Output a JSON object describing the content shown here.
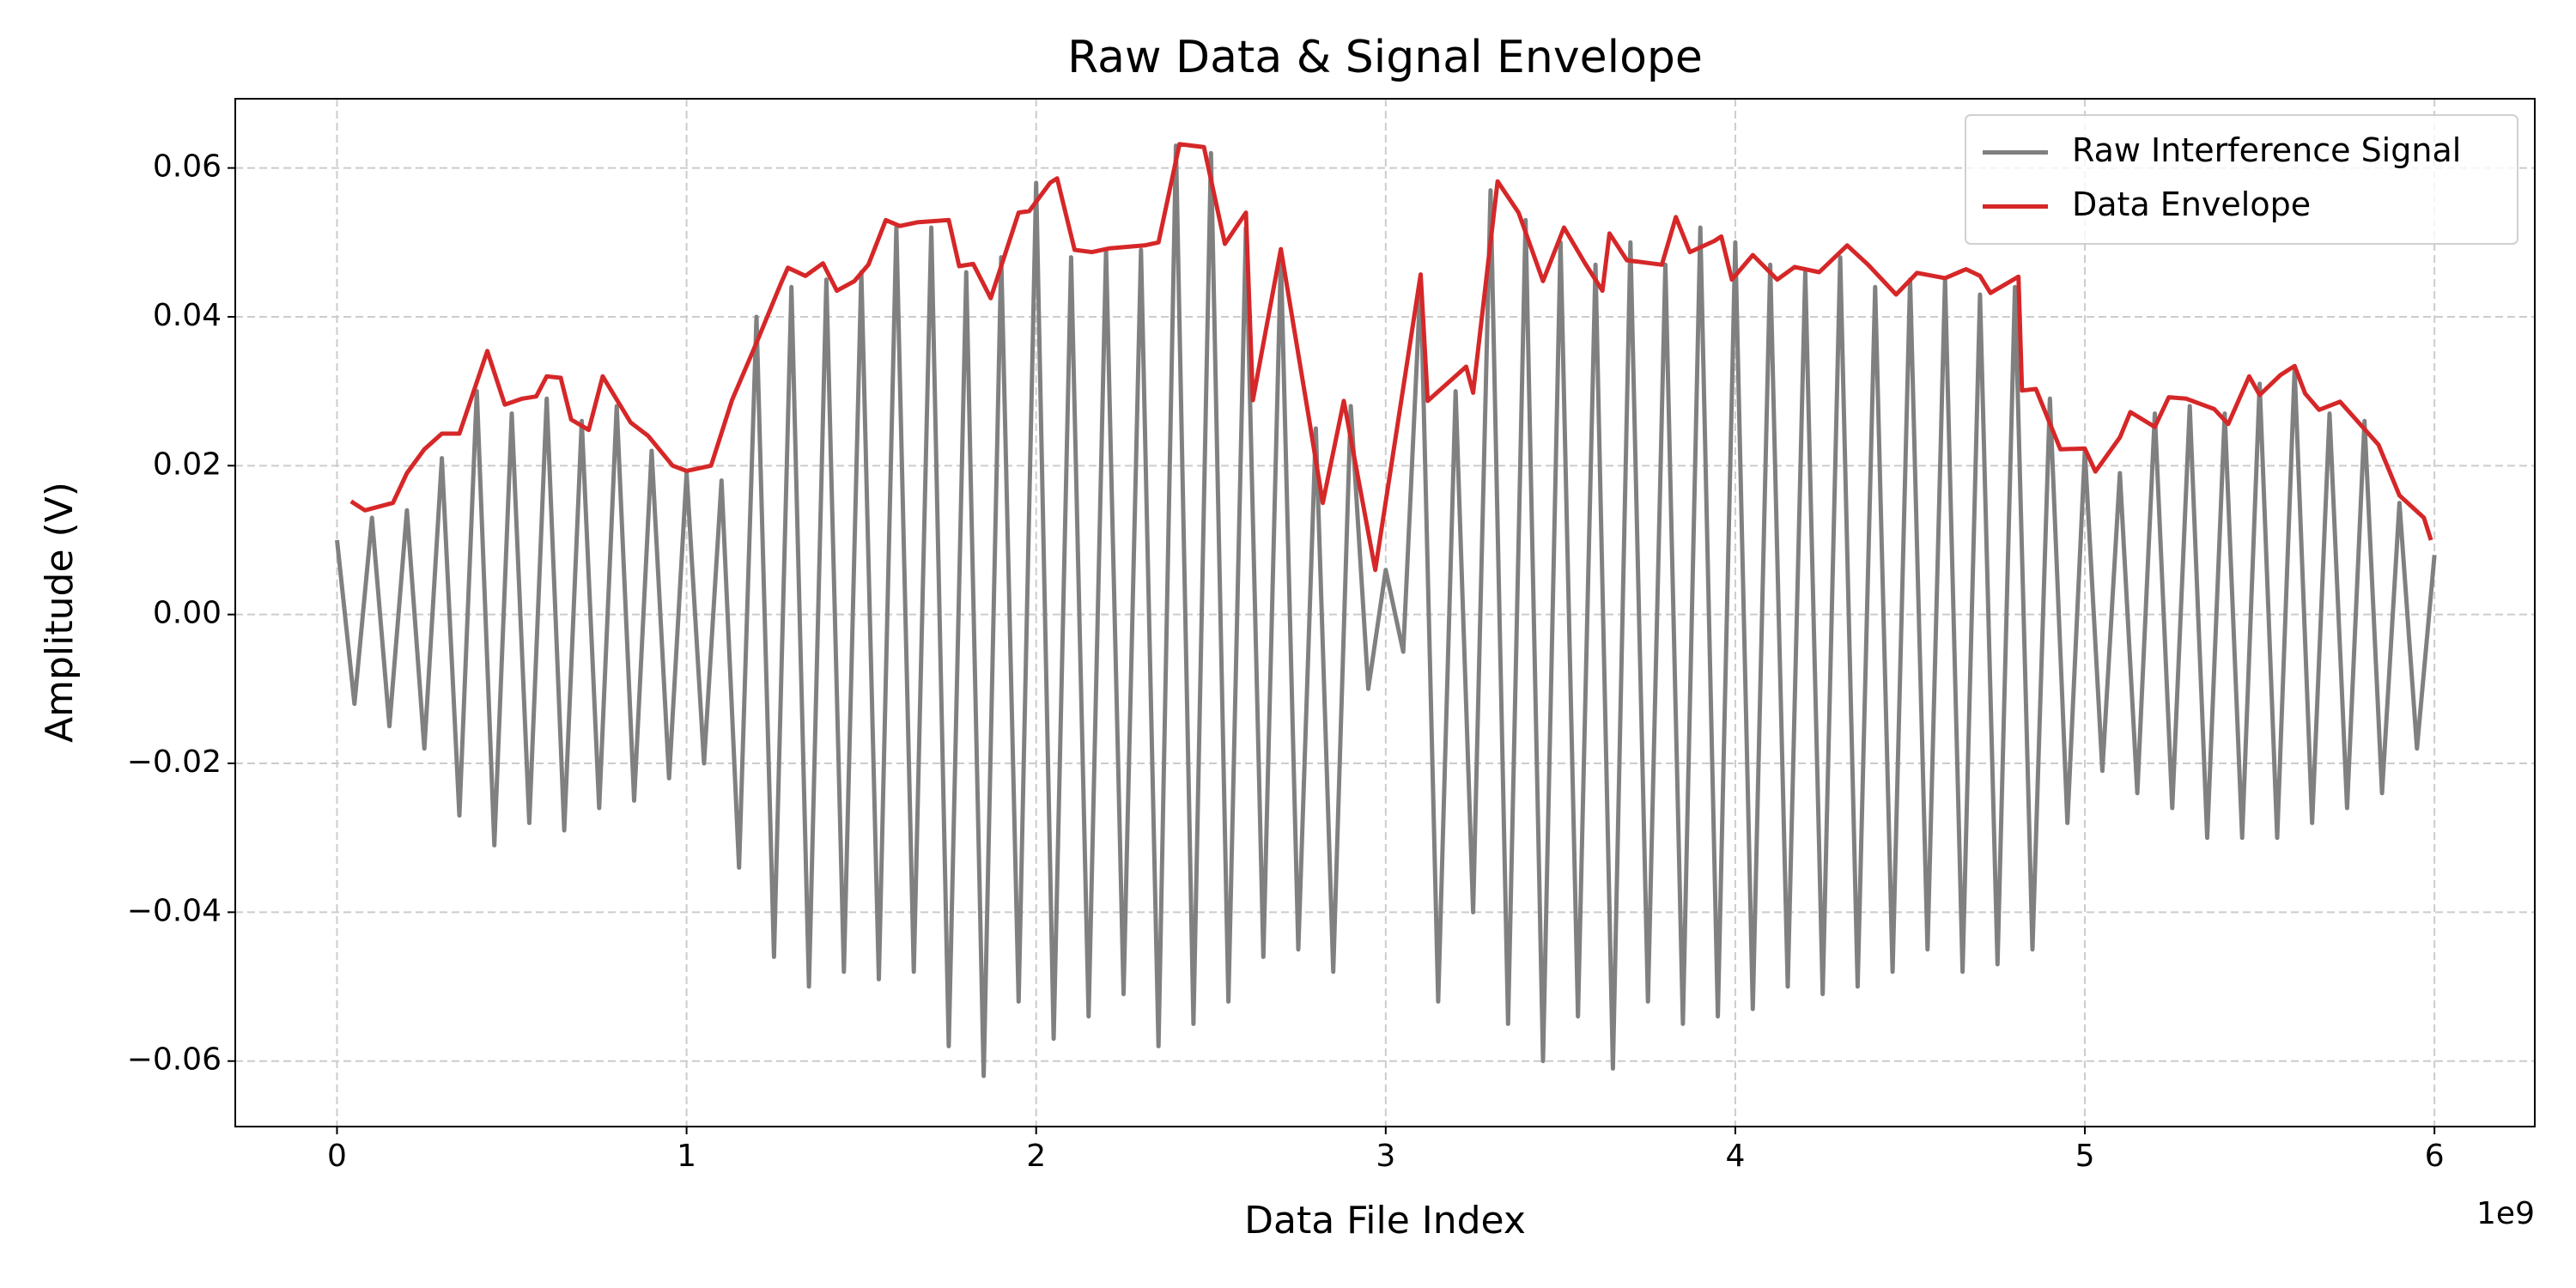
{
  "chart_data": {
    "type": "line",
    "title": "Raw Data & Signal Envelope",
    "xlabel": "Data File Index",
    "ylabel": "Amplitude (V)",
    "x_offset_label": "1e9",
    "xlim": [
      -291000000,
      6287000000
    ],
    "ylim": [
      -0.0688,
      0.0693
    ],
    "xticks": [
      {
        "value": 0,
        "label": "0"
      },
      {
        "value": 1000000000,
        "label": "1"
      },
      {
        "value": 2000000000,
        "label": "2"
      },
      {
        "value": 3000000000,
        "label": "3"
      },
      {
        "value": 4000000000,
        "label": "4"
      },
      {
        "value": 5000000000,
        "label": "5"
      },
      {
        "value": 6000000000,
        "label": "6"
      }
    ],
    "yticks": [
      {
        "value": -0.06,
        "label": "−0.06"
      },
      {
        "value": -0.04,
        "label": "−0.04"
      },
      {
        "value": -0.02,
        "label": "−0.02"
      },
      {
        "value": 0,
        "label": "0.00"
      },
      0.02,
      0.04,
      0.06
    ],
    "grid": true,
    "legend": "upper right",
    "series": [
      {
        "name": "Raw Interference Signal",
        "color": "#808080",
        "x": [
          0,
          50000000,
          100000000,
          150000000,
          200000000,
          250000000,
          300000000,
          350000000,
          400000000,
          450000000,
          500000000,
          550000000,
          600000000,
          650000000,
          700000000,
          750000000,
          800000000,
          850000000,
          900000000,
          950000000,
          1000000000,
          1050000000,
          1100000000,
          1150000000,
          1200000000,
          1250000000,
          1300000000,
          1350000000,
          1400000000,
          1450000000,
          1500000000,
          1550000000,
          1600000000,
          1650000000,
          1700000000,
          1750000000,
          1800000000,
          1850000000,
          1900000000,
          1950000000,
          2000000000,
          2050000000,
          2100000000,
          2150000000,
          2200000000,
          2250000000,
          2300000000,
          2350000000,
          2400000000,
          2450000000,
          2500000000,
          2550000000,
          2600000000,
          2650000000,
          2700000000,
          2750000000,
          2800000000,
          2850000000,
          2900000000,
          2950000000,
          3000000000,
          3050000000,
          3100000000,
          3150000000,
          3200000000,
          3250000000,
          3300000000,
          3350000000,
          3400000000,
          3450000000,
          3500000000,
          3550000000,
          3600000000,
          3650000000,
          3700000000,
          3750000000,
          3800000000,
          3850000000,
          3900000000,
          3950000000,
          4000000000,
          4050000000,
          4100000000,
          4150000000,
          4200000000,
          4250000000,
          4300000000,
          4350000000,
          4400000000,
          4450000000,
          4500000000,
          4550000000,
          4600000000,
          4650000000,
          4700000000,
          4750000000,
          4800000000,
          4850000000,
          4900000000,
          4950000000,
          5000000000,
          5050000000,
          5100000000,
          5150000000,
          5200000000,
          5250000000,
          5300000000,
          5350000000,
          5400000000,
          5450000000,
          5500000000,
          5550000000,
          5600000000,
          5650000000,
          5700000000,
          5750000000,
          5800000000,
          5850000000,
          5900000000,
          5950000000,
          6000000000
        ],
        "values": [
          0.01,
          -0.012,
          0.013,
          -0.015,
          0.014,
          -0.018,
          0.021,
          -0.027,
          0.03,
          -0.031,
          0.027,
          -0.028,
          0.029,
          -0.029,
          0.026,
          -0.026,
          0.028,
          -0.025,
          0.022,
          -0.022,
          0.019,
          -0.02,
          0.018,
          -0.034,
          0.04,
          -0.046,
          0.044,
          -0.05,
          0.045,
          -0.048,
          0.046,
          -0.049,
          0.052,
          -0.048,
          0.052,
          -0.058,
          0.046,
          -0.062,
          0.048,
          -0.052,
          0.058,
          -0.057,
          0.048,
          -0.054,
          0.049,
          -0.051,
          0.049,
          -0.058,
          0.063,
          -0.055,
          0.062,
          -0.052,
          0.052,
          -0.046,
          0.048,
          -0.045,
          0.025,
          -0.048,
          0.028,
          -0.01,
          0.006,
          -0.005,
          0.045,
          -0.052,
          0.03,
          -0.04,
          0.057,
          -0.055,
          0.053,
          -0.06,
          0.05,
          -0.054,
          0.047,
          -0.061,
          0.05,
          -0.052,
          0.047,
          -0.055,
          0.052,
          -0.054,
          0.05,
          -0.053,
          0.047,
          -0.05,
          0.046,
          -0.051,
          0.048,
          -0.05,
          0.044,
          -0.048,
          0.045,
          -0.045,
          0.045,
          -0.048,
          0.043,
          -0.047,
          0.044,
          -0.045,
          0.029,
          -0.028,
          0.022,
          -0.021,
          0.019,
          -0.024,
          0.027,
          -0.026,
          0.028,
          -0.03,
          0.027,
          -0.03,
          0.031,
          -0.03,
          0.033,
          -0.028,
          0.027,
          -0.026,
          0.026,
          -0.024,
          0.015,
          -0.018,
          0.008
        ]
      },
      {
        "name": "Data Envelope",
        "color": "#d62728",
        "x": [
          40000000,
          80000000,
          160000000,
          200000000,
          250000000,
          300000000,
          350000000,
          430000000,
          480000000,
          530000000,
          570000000,
          600000000,
          640000000,
          670000000,
          720000000,
          760000000,
          840000000,
          890000000,
          960000000,
          1000000000,
          1070000000,
          1130000000,
          1200000000,
          1270000000,
          1290000000,
          1340000000,
          1390000000,
          1430000000,
          1480000000,
          1520000000,
          1570000000,
          1610000000,
          1660000000,
          1750000000,
          1780000000,
          1820000000,
          1870000000,
          1950000000,
          1980000000,
          2040000000,
          2060000000,
          2110000000,
          2160000000,
          2210000000,
          2310000000,
          2350000000,
          2410000000,
          2480000000,
          2540000000,
          2600000000,
          2620000000,
          2700000000,
          2780000000,
          2820000000,
          2880000000,
          2970000000,
          3100000000,
          3120000000,
          3230000000,
          3250000000,
          3320000000,
          3380000000,
          3450000000,
          3510000000,
          3570000000,
          3620000000,
          3640000000,
          3690000000,
          3790000000,
          3830000000,
          3870000000,
          3940000000,
          3960000000,
          3990000000,
          4050000000,
          4120000000,
          4170000000,
          4240000000,
          4320000000,
          4380000000,
          4460000000,
          4520000000,
          4600000000,
          4660000000,
          4700000000,
          4730000000,
          4810000000,
          4820000000,
          4860000000,
          4930000000,
          5000000000,
          5030000000,
          5100000000,
          5130000000,
          5200000000,
          5240000000,
          5290000000,
          5370000000,
          5410000000,
          5470000000,
          5500000000,
          5560000000,
          5600000000,
          5630000000,
          5670000000,
          5730000000,
          5840000000,
          5900000000,
          5970000000,
          5990000000
        ],
        "values": [
          0.0152,
          0.014,
          0.015,
          0.019,
          0.0222,
          0.0243,
          0.0243,
          0.0354,
          0.0282,
          0.029,
          0.0293,
          0.032,
          0.0318,
          0.0262,
          0.0248,
          0.032,
          0.0258,
          0.024,
          0.02,
          0.0193,
          0.02,
          0.0288,
          0.0365,
          0.0445,
          0.0466,
          0.0455,
          0.0472,
          0.0435,
          0.0448,
          0.047,
          0.053,
          0.0522,
          0.0527,
          0.053,
          0.0468,
          0.0471,
          0.0425,
          0.054,
          0.0542,
          0.058,
          0.0586,
          0.049,
          0.0487,
          0.0492,
          0.0496,
          0.05,
          0.0632,
          0.0628,
          0.0498,
          0.054,
          0.0288,
          0.0491,
          0.0265,
          0.015,
          0.0287,
          0.006,
          0.0457,
          0.0287,
          0.0333,
          0.0298,
          0.0582,
          0.054,
          0.0448,
          0.052,
          0.0472,
          0.0435,
          0.0512,
          0.0476,
          0.047,
          0.0534,
          0.0487,
          0.0502,
          0.0508,
          0.045,
          0.0483,
          0.045,
          0.0467,
          0.046,
          0.0496,
          0.047,
          0.043,
          0.0459,
          0.0452,
          0.0464,
          0.0455,
          0.0432,
          0.0454,
          0.0301,
          0.0303,
          0.0222,
          0.0223,
          0.0192,
          0.0238,
          0.0272,
          0.0252,
          0.0292,
          0.029,
          0.0276,
          0.0256,
          0.032,
          0.0295,
          0.0322,
          0.0334,
          0.0297,
          0.0275,
          0.0286,
          0.0228,
          0.016,
          0.013,
          0.01
        ]
      }
    ]
  }
}
